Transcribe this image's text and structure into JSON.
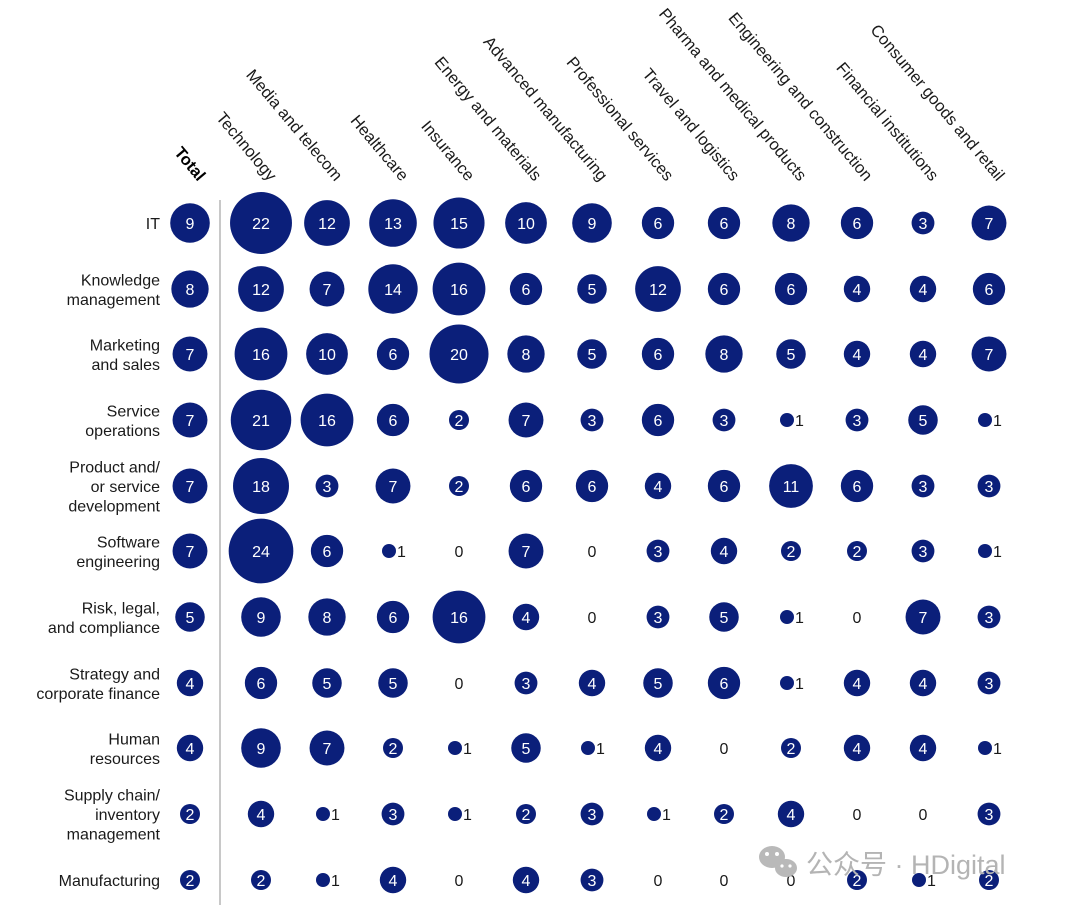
{
  "chart_data": {
    "type": "bubble-matrix",
    "columns": [
      "Total",
      "Technology",
      "Media and telecom",
      "Healthcare",
      "Insurance",
      "Energy and materials",
      "Advanced manufacturing",
      "Professional services",
      "Travel and logistics",
      "Pharma and medical products",
      "Engineering and construction",
      "Financial institutions",
      "Consumer goods and retail"
    ],
    "rows": [
      {
        "label": [
          "IT"
        ],
        "values": [
          9,
          22,
          12,
          13,
          15,
          10,
          9,
          6,
          6,
          8,
          6,
          3,
          7
        ]
      },
      {
        "label": [
          "Knowledge",
          "management"
        ],
        "values": [
          8,
          12,
          7,
          14,
          16,
          6,
          5,
          12,
          6,
          6,
          4,
          4,
          6
        ]
      },
      {
        "label": [
          "Marketing",
          "and sales"
        ],
        "values": [
          7,
          16,
          10,
          6,
          20,
          8,
          5,
          6,
          8,
          5,
          4,
          4,
          7
        ]
      },
      {
        "label": [
          "Service",
          "operations"
        ],
        "values": [
          7,
          21,
          16,
          6,
          2,
          7,
          3,
          6,
          3,
          1,
          3,
          5,
          1
        ]
      },
      {
        "label": [
          "Product and/",
          "or service",
          "development"
        ],
        "values": [
          7,
          18,
          3,
          7,
          2,
          6,
          6,
          4,
          6,
          11,
          6,
          3,
          3
        ]
      },
      {
        "label": [
          "Software",
          "engineering"
        ],
        "values": [
          7,
          24,
          6,
          1,
          0,
          7,
          0,
          3,
          4,
          2,
          2,
          3,
          1
        ]
      },
      {
        "label": [
          "Risk, legal,",
          "and compliance"
        ],
        "values": [
          5,
          9,
          8,
          6,
          16,
          4,
          0,
          3,
          5,
          1,
          0,
          7,
          3
        ]
      },
      {
        "label": [
          "Strategy and",
          "corporate finance"
        ],
        "values": [
          4,
          6,
          5,
          5,
          0,
          3,
          4,
          5,
          6,
          1,
          4,
          4,
          3
        ]
      },
      {
        "label": [
          "Human",
          "resources"
        ],
        "values": [
          4,
          9,
          7,
          2,
          1,
          5,
          1,
          4,
          0,
          2,
          4,
          4,
          1
        ]
      },
      {
        "label": [
          "Supply chain/",
          "inventory",
          "management"
        ],
        "values": [
          2,
          4,
          1,
          3,
          1,
          2,
          3,
          1,
          2,
          4,
          0,
          0,
          3
        ]
      },
      {
        "label": [
          "Manufacturing"
        ],
        "values": [
          2,
          2,
          1,
          4,
          0,
          4,
          3,
          0,
          0,
          0,
          2,
          1,
          2
        ]
      }
    ],
    "colors": {
      "bubble": "#0b1f7a"
    }
  },
  "watermark": {
    "text": "公众号 · HDigital",
    "icon": "wechat-icon"
  }
}
